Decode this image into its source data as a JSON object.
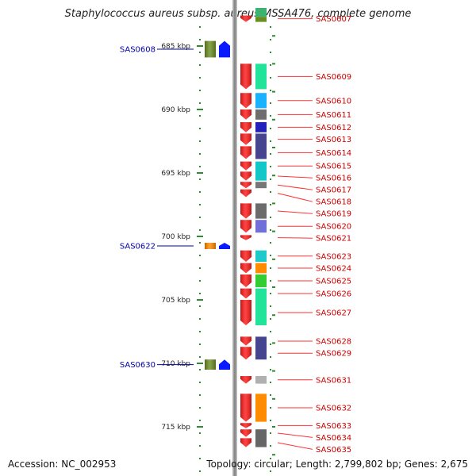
{
  "title": "Staphylococcus aureus subsp. aureus MSSA476, complete genome",
  "accession_text": "Accession: NC_002953",
  "topology_text": "Topology: circular; Length: 2,799,802 bp; Genes: 2,675",
  "colors": {
    "backbone": "#8c8c8c",
    "minus_strand_gene": "#ff1a1a",
    "label_red": "#cc0000",
    "label_blue": "#0000aa",
    "leader_red": "#ff3333",
    "scale_green": "#2e8b2e"
  },
  "scale": {
    "unit": "kbp",
    "ticks": [
      {
        "kbp": 685,
        "label": "685 kbp"
      },
      {
        "kbp": 690,
        "label": "690 kbp"
      },
      {
        "kbp": 695,
        "label": "695 kbp"
      },
      {
        "kbp": 700,
        "label": "700 kbp"
      },
      {
        "kbp": 705,
        "label": "705 kbp"
      },
      {
        "kbp": 710,
        "label": "710 kbp"
      },
      {
        "kbp": 715,
        "label": "715 kbp"
      }
    ]
  },
  "minus_genes": [
    {
      "id": "SAS0607",
      "label": "SAS0607",
      "start": 682.6,
      "end": 683.1
    },
    {
      "id": "SAS0609",
      "label": "SAS0609",
      "start": 686.4,
      "end": 688.4
    },
    {
      "id": "SAS0610",
      "label": "SAS0610",
      "start": 688.7,
      "end": 689.9
    },
    {
      "id": "SAS0611",
      "label": "SAS0611",
      "start": 690.0,
      "end": 690.8
    },
    {
      "id": "SAS0612",
      "label": "SAS0612",
      "start": 691.0,
      "end": 691.8
    },
    {
      "id": "SAS0613",
      "label": "SAS0613",
      "start": 691.9,
      "end": 692.8
    },
    {
      "id": "SAS0614",
      "label": "SAS0614",
      "start": 692.9,
      "end": 693.9
    },
    {
      "id": "SAS0615",
      "label": "SAS0615",
      "start": 694.1,
      "end": 694.8
    },
    {
      "id": "SAS0616",
      "label": "SAS0616",
      "start": 694.9,
      "end": 695.6
    },
    {
      "id": "SAS0617",
      "label": "SAS0617",
      "start": 695.7,
      "end": 696.2
    },
    {
      "id": "SAS0618",
      "label": "SAS0618",
      "start": 696.3,
      "end": 696.9
    },
    {
      "id": "SAS0619",
      "label": "SAS0619",
      "start": 697.4,
      "end": 698.6
    },
    {
      "id": "SAS0620",
      "label": "SAS0620",
      "start": 698.7,
      "end": 699.7
    },
    {
      "id": "SAS0621",
      "label": "SAS0621",
      "start": 699.9,
      "end": 700.3
    },
    {
      "id": "SAS0623",
      "label": "SAS0623",
      "start": 701.1,
      "end": 702.0
    },
    {
      "id": "SAS0624",
      "label": "SAS0624",
      "start": 702.1,
      "end": 702.9
    },
    {
      "id": "SAS0625",
      "label": "SAS0625",
      "start": 703.0,
      "end": 704.0
    },
    {
      "id": "SAS0626",
      "label": "SAS0626",
      "start": 704.1,
      "end": 704.9
    },
    {
      "id": "SAS0627",
      "label": "SAS0627",
      "start": 705.0,
      "end": 707.0
    },
    {
      "id": "SAS0628",
      "label": "SAS0628",
      "start": 707.9,
      "end": 708.6
    },
    {
      "id": "SAS0629",
      "label": "SAS0629",
      "start": 708.7,
      "end": 709.7
    },
    {
      "id": "SAS0631",
      "label": "SAS0631",
      "start": 711.0,
      "end": 711.6
    },
    {
      "id": "SAS0632",
      "label": "SAS0632",
      "start": 712.4,
      "end": 714.6
    },
    {
      "id": "SAS0633",
      "label": "SAS0633",
      "start": 714.7,
      "end": 715.1
    },
    {
      "id": "SAS0634",
      "label": "SAS0634",
      "start": 715.2,
      "end": 715.8
    },
    {
      "id": "SAS0635",
      "label": "SAS0635",
      "start": 715.9,
      "end": 716.6
    }
  ],
  "minus_cogs": [
    {
      "start": 682.0,
      "end": 682.7,
      "color": "#3cb371"
    },
    {
      "start": 682.7,
      "end": 683.1,
      "color": "#6b8e23"
    },
    {
      "start": 686.4,
      "end": 688.4,
      "color": "#22e39a"
    },
    {
      "start": 688.7,
      "end": 689.9,
      "color": "#1ab2ff"
    },
    {
      "start": 690.0,
      "end": 690.8,
      "color": "#6e6e6e"
    },
    {
      "start": 691.0,
      "end": 691.8,
      "color": "#2222bb"
    },
    {
      "start": 691.9,
      "end": 693.9,
      "color": "#44448f"
    },
    {
      "start": 694.1,
      "end": 695.6,
      "color": "#11c7c7"
    },
    {
      "start": 695.7,
      "end": 696.2,
      "color": "#777777"
    },
    {
      "start": 697.4,
      "end": 698.6,
      "color": "#6b6b6b"
    },
    {
      "start": 698.7,
      "end": 699.7,
      "color": "#7070d8"
    },
    {
      "start": 701.1,
      "end": 702.0,
      "color": "#20c9c9"
    },
    {
      "start": 702.1,
      "end": 702.9,
      "color": "#ff8c00"
    },
    {
      "start": 703.0,
      "end": 704.0,
      "color": "#32cd32"
    },
    {
      "start": 704.1,
      "end": 707.0,
      "color": "#22e39a"
    },
    {
      "start": 707.9,
      "end": 709.7,
      "color": "#44448f"
    },
    {
      "start": 711.0,
      "end": 711.6,
      "color": "#b0b0b0"
    },
    {
      "start": 712.4,
      "end": 714.6,
      "color": "#ff8c00"
    },
    {
      "start": 715.2,
      "end": 716.6,
      "color": "#666666"
    }
  ],
  "plus_genes": [
    {
      "id": "SAS0608",
      "label": "SAS0608",
      "start": 684.6,
      "end": 685.9,
      "cog_color": "#6b8e23"
    },
    {
      "id": "SAS0622",
      "label": "SAS0622",
      "start": 700.5,
      "end": 700.9,
      "cog_color": "#ff8c00"
    },
    {
      "id": "SAS0630",
      "label": "SAS0630",
      "start": 709.7,
      "end": 710.5,
      "cog_color": "#6b8e23"
    }
  ]
}
